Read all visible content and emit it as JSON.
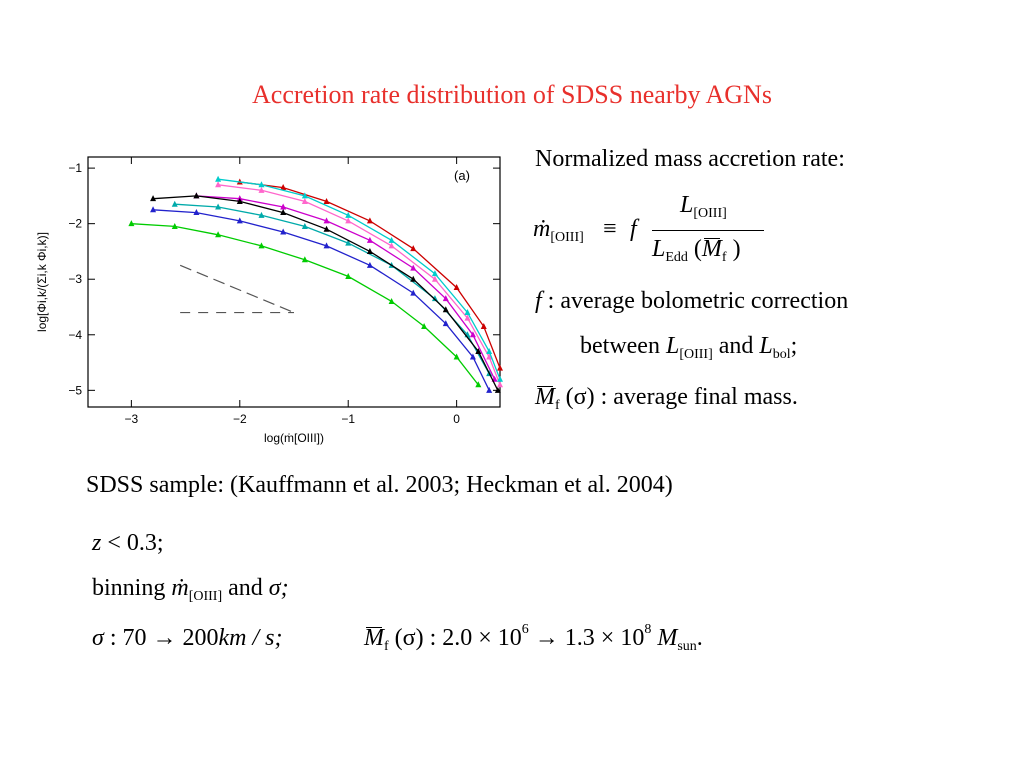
{
  "slide": {
    "title": "Accretion rate distribution of SDSS nearby AGNs"
  },
  "chart_data": {
    "type": "line",
    "panel_label": "(a)",
    "xlabel": "log(ṁ[OIII])",
    "ylabel": "log[Φi,k/(Σi,k Φi,k)]",
    "xlim": [
      -3.4,
      0.4
    ],
    "ylim": [
      -5.3,
      -0.8
    ],
    "x_ticks": [
      -3,
      -2,
      -1,
      0
    ],
    "x_tick_labels": [
      "−3",
      "−2",
      "−1",
      "0"
    ],
    "y_ticks": [
      -1,
      -2,
      -3,
      -4,
      -5
    ],
    "y_tick_labels": [
      "−1",
      "−2",
      "−3",
      "−4",
      "−5"
    ],
    "series": [
      {
        "color": "#00cc00",
        "x": [
          -3.0,
          -2.6,
          -2.2,
          -1.8,
          -1.4,
          -1.0,
          -0.6,
          -0.3,
          0.0,
          0.2
        ],
        "y": [
          -2.0,
          -2.05,
          -2.2,
          -2.4,
          -2.65,
          -2.95,
          -3.4,
          -3.85,
          -4.4,
          -4.9
        ]
      },
      {
        "color": "#2222cc",
        "x": [
          -2.8,
          -2.4,
          -2.0,
          -1.6,
          -1.2,
          -0.8,
          -0.4,
          -0.1,
          0.15,
          0.3
        ],
        "y": [
          -1.75,
          -1.8,
          -1.95,
          -2.15,
          -2.4,
          -2.75,
          -3.25,
          -3.8,
          -4.4,
          -5.0
        ]
      },
      {
        "color": "#00aaaa",
        "x": [
          -2.6,
          -2.2,
          -1.8,
          -1.4,
          -1.0,
          -0.6,
          -0.2,
          0.1,
          0.3
        ],
        "y": [
          -1.65,
          -1.7,
          -1.85,
          -2.05,
          -2.35,
          -2.75,
          -3.35,
          -4.0,
          -4.7
        ]
      },
      {
        "color": "#cc00cc",
        "x": [
          -2.4,
          -2.0,
          -1.6,
          -1.2,
          -0.8,
          -0.4,
          -0.1,
          0.15,
          0.35
        ],
        "y": [
          -1.5,
          -1.55,
          -1.7,
          -1.95,
          -2.3,
          -2.8,
          -3.35,
          -4.0,
          -4.8
        ]
      },
      {
        "color": "#000000",
        "x": [
          -2.8,
          -2.4,
          -2.0,
          -1.6,
          -1.2,
          -0.8,
          -0.4,
          -0.1,
          0.2,
          0.38
        ],
        "y": [
          -1.55,
          -1.5,
          -1.6,
          -1.8,
          -2.1,
          -2.5,
          -3.0,
          -3.55,
          -4.3,
          -5.0
        ]
      },
      {
        "color": "#ff66cc",
        "x": [
          -2.2,
          -1.8,
          -1.4,
          -1.0,
          -0.6,
          -0.2,
          0.1,
          0.3,
          0.4
        ],
        "y": [
          -1.3,
          -1.4,
          -1.6,
          -1.95,
          -2.4,
          -3.0,
          -3.7,
          -4.4,
          -4.9
        ]
      },
      {
        "color": "#cc0000",
        "x": [
          -2.0,
          -1.6,
          -1.2,
          -0.8,
          -0.4,
          0.0,
          0.25,
          0.4
        ],
        "y": [
          -1.25,
          -1.35,
          -1.6,
          -1.95,
          -2.45,
          -3.15,
          -3.85,
          -4.6
        ]
      },
      {
        "color": "#00cccc",
        "x": [
          -2.2,
          -1.8,
          -1.4,
          -1.0,
          -0.6,
          -0.2,
          0.1,
          0.3,
          0.4
        ],
        "y": [
          -1.2,
          -1.3,
          -1.5,
          -1.85,
          -2.3,
          -2.9,
          -3.6,
          -4.3,
          -4.8
        ]
      }
    ],
    "reference_lines": [
      {
        "style": "long-dash",
        "x": [
          -2.55,
          -1.5
        ],
        "y": [
          -2.75,
          -3.6
        ]
      },
      {
        "style": "dashed",
        "x": [
          -2.55,
          -1.5
        ],
        "y": [
          -3.6,
          -3.6
        ]
      }
    ]
  },
  "definition": {
    "heading": "Normalized mass accretion rate:",
    "lhs_symbol": "ṁ",
    "lhs_sub": "[OIII]",
    "equiv": "≡",
    "f_symbol": "f",
    "num_L": "L",
    "num_sub": "[OIII]",
    "den_L": "L",
    "den_sub": "Edd",
    "den_M": "M",
    "den_M_sub": "f",
    "paren_open": "(",
    "paren_close": ")"
  },
  "legend_lines": {
    "f_symbol": "f",
    "colon": ":",
    "f_desc": "average bolometric correction",
    "between": "between",
    "L1": "L",
    "L1_sub": "[OIII]",
    "and": "and",
    "L2": "L",
    "L2_sub": "bol",
    "semicolon": ";",
    "M_symbol": "M",
    "M_sub": "f",
    "sigma_arg": "(σ) :",
    "M_desc": "average final mass."
  },
  "sample": {
    "line": "SDSS sample: (Kauffmann et al. 2003; Heckman et al. 2004)",
    "z_var": "z",
    "z_cond": "< 0.3;",
    "binning": "binning",
    "binning_symbol": "ṁ",
    "binning_sub": "[OIII]",
    "binning_and": "and",
    "binning_sigma": "σ;",
    "sigma": "σ",
    "sigma_colon": ":",
    "sigma_range": "70 → 200",
    "sigma_units": "km / s;",
    "M_symbol": "M",
    "M_sub": "f",
    "M_arg": "(σ) : 2.0 × 10",
    "M_exp1": "6",
    "M_arrow": "→ 1.3 × 10",
    "M_exp2": "8",
    "M_unit": "M",
    "M_unit_sub": "sun",
    "period": "."
  }
}
